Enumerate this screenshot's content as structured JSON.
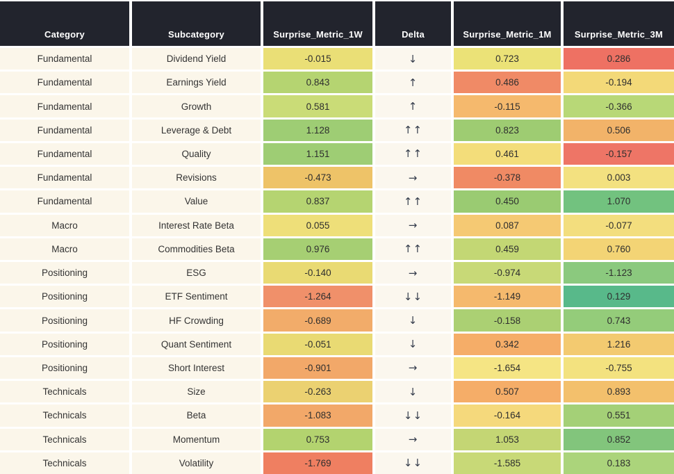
{
  "chart_data": {
    "type": "table",
    "columns": [
      "Category",
      "Subcategory",
      "Surprise_Metric_1W",
      "Delta",
      "Surprise_Metric_1M",
      "Surprise_Metric_3M"
    ],
    "rows": [
      {
        "category": "Fundamental",
        "subcategory": "Dividend Yield",
        "m1w": "-0.015",
        "m1w_color": "#eadf76",
        "delta": "↓",
        "m1m": "0.723",
        "m1m_color": "#ebe277",
        "m3m": "0.286",
        "m3m_color": "#ee7163"
      },
      {
        "category": "Fundamental",
        "subcategory": "Earnings Yield",
        "m1w": "0.843",
        "m1w_color": "#b5d471",
        "delta": "↑",
        "m1m": "0.486",
        "m1m_color": "#f08a66",
        "m3m": "-0.194",
        "m3m_color": "#f3d978"
      },
      {
        "category": "Fundamental",
        "subcategory": "Growth",
        "m1w": "0.581",
        "m1w_color": "#cadc77",
        "delta": "↑",
        "m1m": "-0.115",
        "m1m_color": "#f5b96d",
        "m3m": "-0.366",
        "m3m_color": "#b8d877"
      },
      {
        "category": "Fundamental",
        "subcategory": "Leverage & Debt",
        "m1w": "1.128",
        "m1w_color": "#9ecd74",
        "delta": "↑↑",
        "m1m": "0.823",
        "m1m_color": "#9ecc72",
        "m3m": "0.506",
        "m3m_color": "#f2b369"
      },
      {
        "category": "Fundamental",
        "subcategory": "Quality",
        "m1w": "1.151",
        "m1w_color": "#9ecd74",
        "delta": "↑↑",
        "m1m": "0.461",
        "m1m_color": "#f3dd7a",
        "m3m": "-0.157",
        "m3m_color": "#ee7566"
      },
      {
        "category": "Fundamental",
        "subcategory": "Revisions",
        "m1w": "-0.473",
        "m1w_color": "#eec368",
        "delta": "→",
        "m1m": "-0.378",
        "m1m_color": "#f08a64",
        "m3m": "0.003",
        "m3m_color": "#f3e180"
      },
      {
        "category": "Fundamental",
        "subcategory": "Value",
        "m1w": "0.837",
        "m1w_color": "#b5d471",
        "delta": "↑↑",
        "m1m": "0.450",
        "m1m_color": "#9acb72",
        "m3m": "1.070",
        "m3m_color": "#72c27f"
      },
      {
        "category": "Macro",
        "subcategory": "Interest Rate Beta",
        "m1w": "0.055",
        "m1w_color": "#eedf79",
        "delta": "→",
        "m1m": "0.087",
        "m1m_color": "#f5c973",
        "m3m": "-0.077",
        "m3m_color": "#f3de7e"
      },
      {
        "category": "Macro",
        "subcategory": "Commodities Beta",
        "m1w": "0.976",
        "m1w_color": "#a6cf73",
        "delta": "↑↑",
        "m1m": "0.459",
        "m1m_color": "#c3d774",
        "m3m": "0.760",
        "m3m_color": "#f3d475"
      },
      {
        "category": "Positioning",
        "subcategory": "ESG",
        "m1w": "-0.140",
        "m1w_color": "#e9da73",
        "delta": "→",
        "m1m": "-0.974",
        "m1m_color": "#c8d977",
        "m3m": "-1.123",
        "m3m_color": "#8bc97e"
      },
      {
        "category": "Positioning",
        "subcategory": "ETF Sentiment",
        "m1w": "-1.264",
        "m1w_color": "#f0906a",
        "delta": "↓↓",
        "m1m": "-1.149",
        "m1m_color": "#f5b96d",
        "m3m": "0.129",
        "m3m_color": "#58b98a"
      },
      {
        "category": "Positioning",
        "subcategory": "HF Crowding",
        "m1w": "-0.689",
        "m1w_color": "#f2ac6a",
        "delta": "↓",
        "m1m": "-0.158",
        "m1m_color": "#abd073",
        "m3m": "0.743",
        "m3m_color": "#94cc7a"
      },
      {
        "category": "Positioning",
        "subcategory": "Quant Sentiment",
        "m1w": "-0.051",
        "m1w_color": "#e9da73",
        "delta": "↓",
        "m1m": "0.342",
        "m1m_color": "#f5ad68",
        "m3m": "1.216",
        "m3m_color": "#f3ca70"
      },
      {
        "category": "Positioning",
        "subcategory": "Short Interest",
        "m1w": "-0.901",
        "m1w_color": "#f2a869",
        "delta": "→",
        "m1m": "-1.654",
        "m1m_color": "#f5e584",
        "m3m": "-0.755",
        "m3m_color": "#f3e27f"
      },
      {
        "category": "Technicals",
        "subcategory": "Size",
        "m1w": "-0.263",
        "m1w_color": "#ebd171",
        "delta": "↓",
        "m1m": "0.507",
        "m1m_color": "#f5ad68",
        "m3m": "0.893",
        "m3m_color": "#f3c06c"
      },
      {
        "category": "Technicals",
        "subcategory": "Beta",
        "m1w": "-1.083",
        "m1w_color": "#f2a869",
        "delta": "↓↓",
        "m1m": "-0.164",
        "m1m_color": "#f5d97c",
        "m3m": "0.551",
        "m3m_color": "#a4d077"
      },
      {
        "category": "Technicals",
        "subcategory": "Momentum",
        "m1w": "0.753",
        "m1w_color": "#b3d36f",
        "delta": "→",
        "m1m": "1.053",
        "m1m_color": "#c4d674",
        "m3m": "0.852",
        "m3m_color": "#82c57c"
      },
      {
        "category": "Technicals",
        "subcategory": "Volatility",
        "m1w": "-1.769",
        "m1w_color": "#ef7f61",
        "delta": "↓↓",
        "m1m": "-1.585",
        "m1m_color": "#c8d977",
        "m3m": "0.183",
        "m3m_color": "#abd47b"
      }
    ]
  },
  "colors": {
    "header_bg": "#22242d",
    "header_text": "#ffffff",
    "row_bg": "#fbf6ea",
    "body_text": "#333333",
    "arrow": "#353d4c",
    "page_bg": "#ffffff"
  }
}
